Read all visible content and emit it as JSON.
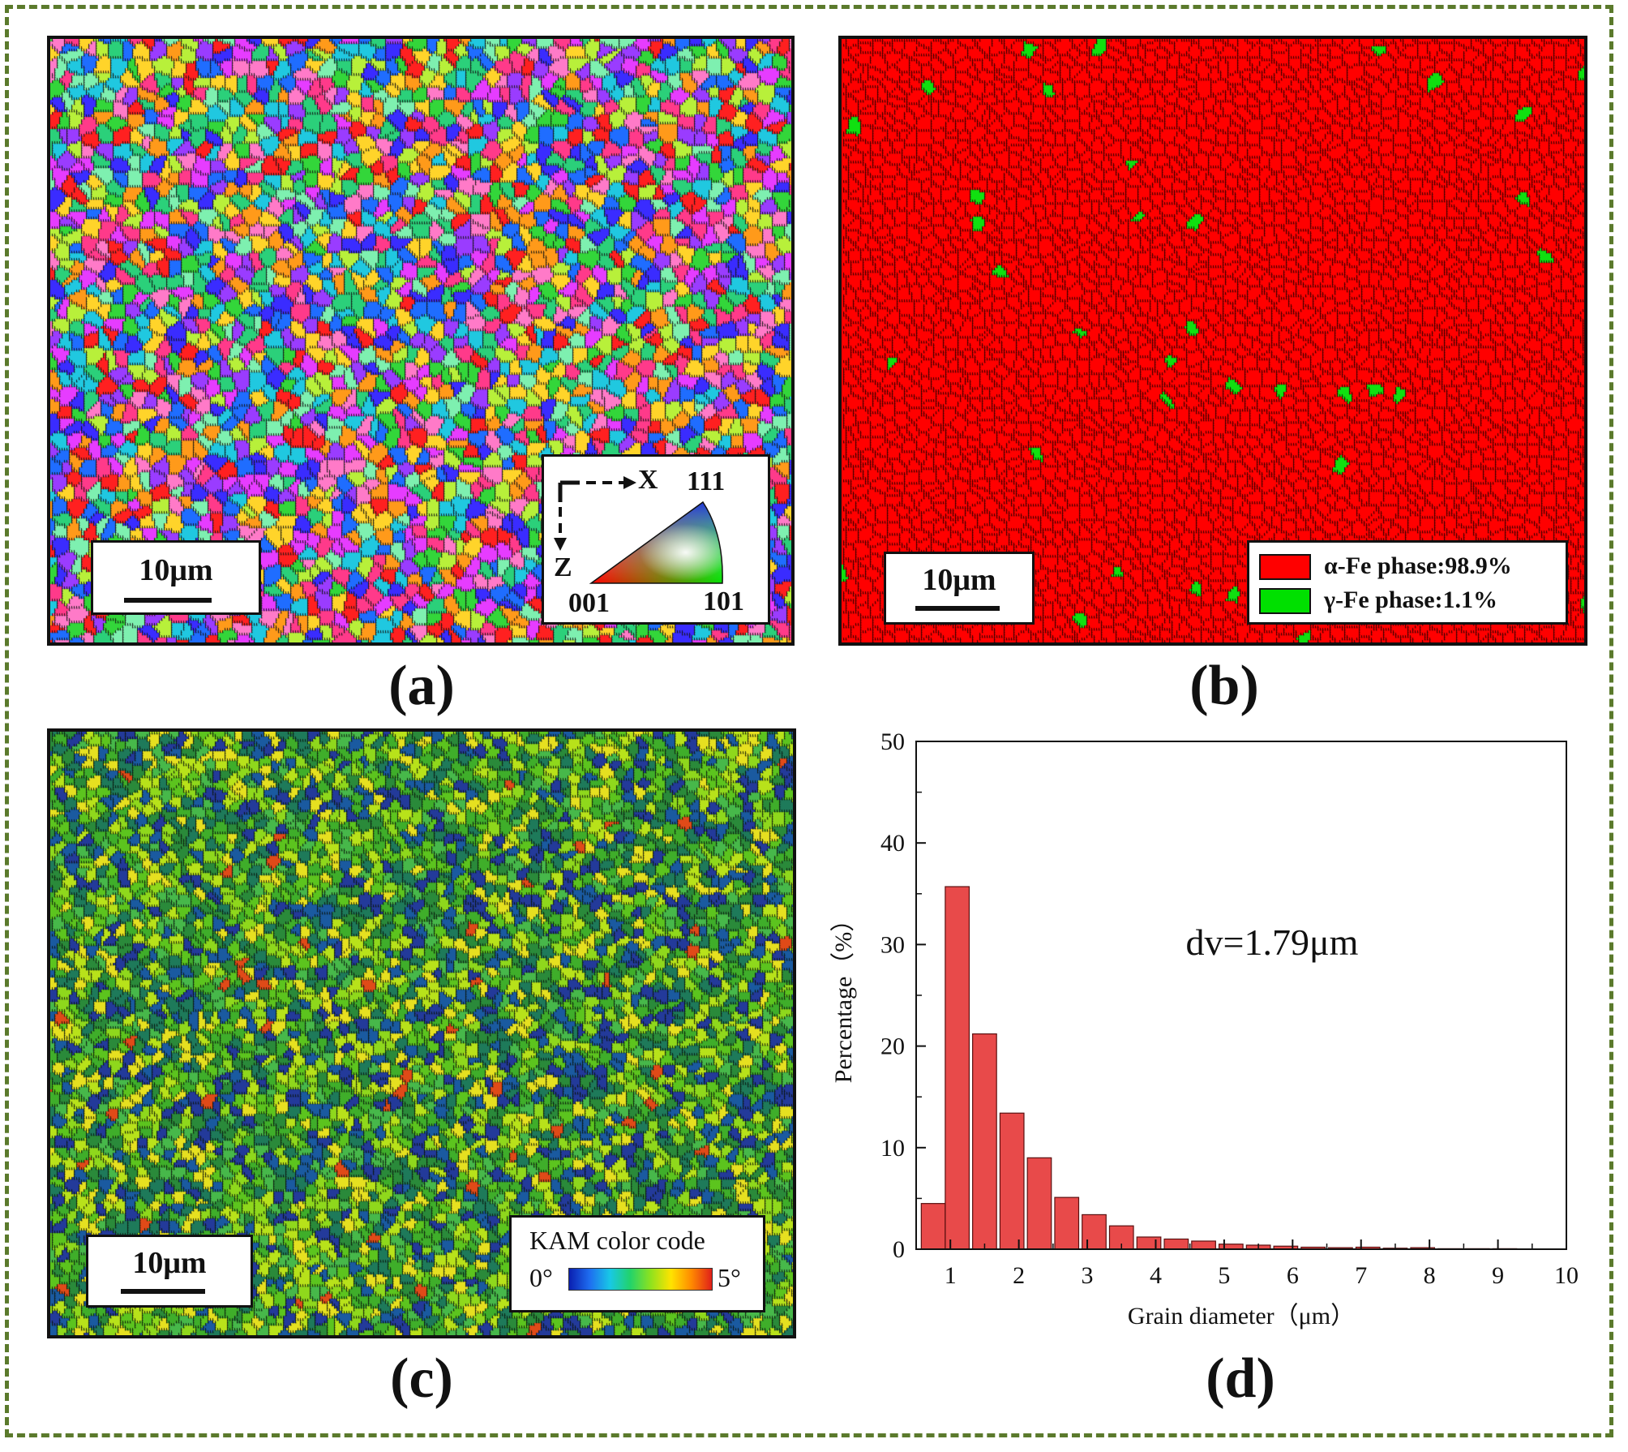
{
  "panels": {
    "a": {
      "caption": "(a)",
      "scale_label": "10μm",
      "ipf_key": {
        "axis_x": "X",
        "axis_z": "Z",
        "corner_111": "111",
        "corner_001": "001",
        "corner_101": "101"
      }
    },
    "b": {
      "caption": "(b)",
      "scale_label": "10μm",
      "legend": [
        {
          "label": "α-Fe phase:98.9%",
          "color": "#ff0000"
        },
        {
          "label": "γ-Fe phase:1.1%",
          "color": "#00e000"
        }
      ]
    },
    "c": {
      "caption": "(c)",
      "scale_label": "10μm",
      "kam_key": {
        "title": "KAM color code",
        "min_label": "0°",
        "max_label": "5°"
      }
    },
    "d": {
      "caption": "(d)"
    }
  },
  "chart_data": {
    "type": "bar",
    "title": "",
    "xlabel": "Grain diameter（μm）",
    "ylabel": "Percentage（%）",
    "annotation": "dv=1.79μm",
    "xlim": [
      0.5,
      10
    ],
    "ylim": [
      0,
      50
    ],
    "xticks": [
      1,
      2,
      3,
      4,
      5,
      6,
      7,
      8,
      9,
      10
    ],
    "yticks": [
      0,
      10,
      20,
      30,
      40,
      50
    ],
    "bin_width": 0.35,
    "bar_color": "#e84a4a",
    "x": [
      0.75,
      1.1,
      1.5,
      1.9,
      2.3,
      2.7,
      3.1,
      3.5,
      3.9,
      4.3,
      4.7,
      5.1,
      5.5,
      5.9,
      6.3,
      6.7,
      7.1,
      7.5,
      7.9,
      8.3,
      8.7,
      9.1
    ],
    "values": [
      4.5,
      35.7,
      21.2,
      13.4,
      9.0,
      5.1,
      3.4,
      2.3,
      1.2,
      1.0,
      0.8,
      0.5,
      0.4,
      0.3,
      0.2,
      0.15,
      0.2,
      0.1,
      0.15,
      0.05,
      0.05,
      0.05
    ]
  }
}
